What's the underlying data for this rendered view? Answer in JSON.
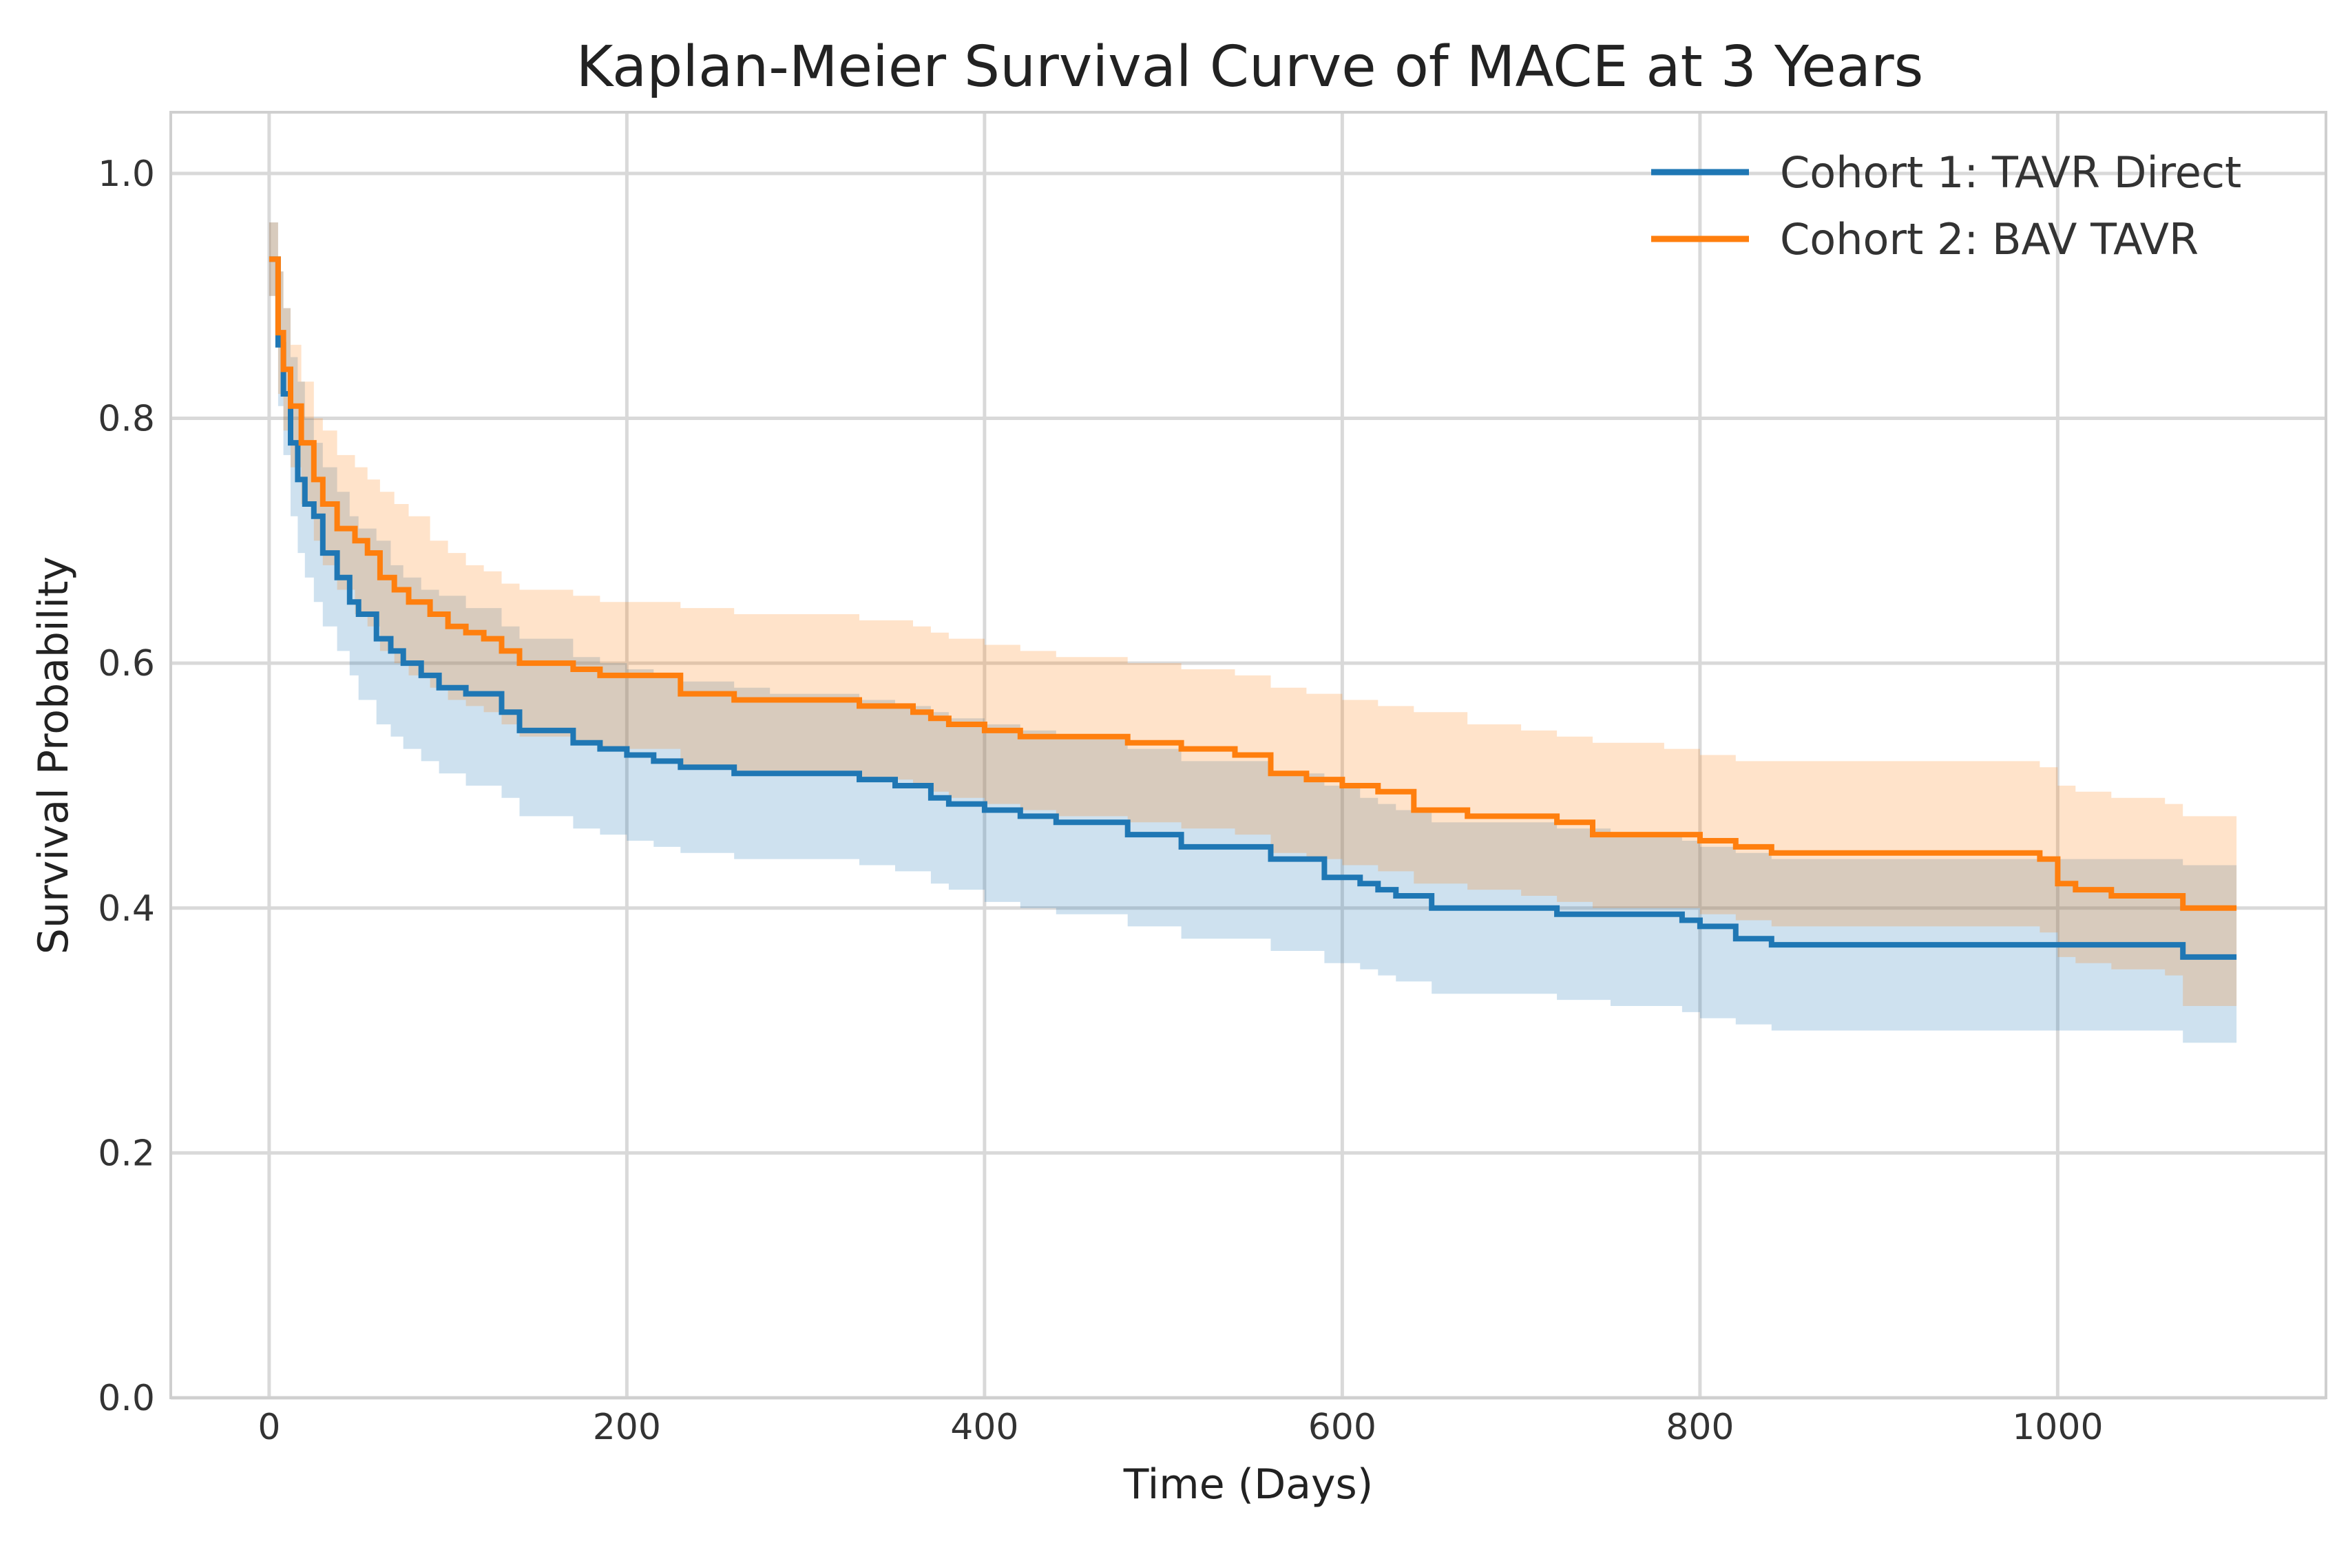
{
  "chart_data": {
    "type": "line",
    "title": "Kaplan-Meier Survival Curve of MACE at 3 Years",
    "xlabel": "Time (Days)",
    "ylabel": "Survival Probability",
    "xlim": [
      -55,
      1150
    ],
    "ylim": [
      0,
      1.05
    ],
    "xticks": [
      0,
      200,
      400,
      600,
      800,
      1000
    ],
    "xtick_labels": [
      "0",
      "200",
      "400",
      "600",
      "800",
      "1000"
    ],
    "yticks": [
      0.0,
      0.2,
      0.4,
      0.6,
      0.8,
      1.0
    ],
    "ytick_labels": [
      "0.0",
      "0.2",
      "0.4",
      "0.6",
      "0.8",
      "1.0"
    ],
    "grid": true,
    "legend_position": "top-right",
    "step": "post",
    "series": [
      {
        "name": "Cohort 1: TAVR Direct",
        "color": "#1f77b4",
        "x": [
          0,
          5,
          8,
          12,
          16,
          20,
          25,
          30,
          38,
          45,
          50,
          60,
          68,
          75,
          85,
          95,
          110,
          130,
          140,
          170,
          185,
          200,
          215,
          230,
          260,
          280,
          330,
          350,
          370,
          380,
          400,
          420,
          440,
          480,
          510,
          560,
          590,
          610,
          620,
          630,
          650,
          700,
          720,
          750,
          790,
          800,
          820,
          840,
          1000,
          1070,
          1100
        ],
        "values": [
          0.93,
          0.86,
          0.82,
          0.78,
          0.75,
          0.73,
          0.72,
          0.69,
          0.67,
          0.65,
          0.64,
          0.62,
          0.61,
          0.6,
          0.59,
          0.58,
          0.575,
          0.56,
          0.545,
          0.535,
          0.53,
          0.525,
          0.52,
          0.515,
          0.51,
          0.51,
          0.505,
          0.5,
          0.49,
          0.485,
          0.48,
          0.475,
          0.47,
          0.46,
          0.45,
          0.44,
          0.425,
          0.42,
          0.415,
          0.41,
          0.4,
          0.4,
          0.395,
          0.395,
          0.39,
          0.385,
          0.375,
          0.37,
          0.37,
          0.36,
          0.36
        ],
        "ci_upper": [
          0.96,
          0.92,
          0.89,
          0.85,
          0.83,
          0.8,
          0.78,
          0.76,
          0.74,
          0.72,
          0.71,
          0.7,
          0.68,
          0.67,
          0.66,
          0.655,
          0.645,
          0.63,
          0.62,
          0.605,
          0.6,
          0.595,
          0.59,
          0.585,
          0.58,
          0.575,
          0.57,
          0.565,
          0.56,
          0.555,
          0.55,
          0.545,
          0.54,
          0.53,
          0.52,
          0.51,
          0.5,
          0.49,
          0.485,
          0.48,
          0.47,
          0.47,
          0.465,
          0.46,
          0.455,
          0.45,
          0.445,
          0.44,
          0.44,
          0.435,
          0.435
        ],
        "ci_lower": [
          0.9,
          0.81,
          0.77,
          0.72,
          0.69,
          0.67,
          0.65,
          0.63,
          0.61,
          0.59,
          0.57,
          0.55,
          0.54,
          0.53,
          0.52,
          0.51,
          0.5,
          0.49,
          0.475,
          0.465,
          0.46,
          0.455,
          0.45,
          0.445,
          0.44,
          0.44,
          0.435,
          0.43,
          0.42,
          0.415,
          0.405,
          0.4,
          0.395,
          0.385,
          0.375,
          0.365,
          0.355,
          0.35,
          0.345,
          0.34,
          0.33,
          0.33,
          0.325,
          0.32,
          0.315,
          0.31,
          0.305,
          0.3,
          0.3,
          0.29,
          0.285
        ]
      },
      {
        "name": "Cohort 2: BAV TAVR",
        "color": "#ff7f0e",
        "x": [
          0,
          5,
          8,
          12,
          18,
          25,
          30,
          38,
          48,
          55,
          62,
          70,
          78,
          90,
          100,
          110,
          120,
          130,
          140,
          170,
          185,
          230,
          260,
          330,
          360,
          370,
          380,
          400,
          420,
          440,
          480,
          510,
          540,
          560,
          580,
          600,
          620,
          640,
          670,
          700,
          720,
          740,
          780,
          800,
          820,
          840,
          980,
          990,
          1000,
          1010,
          1030,
          1060,
          1070,
          1100
        ],
        "values": [
          0.93,
          0.87,
          0.84,
          0.81,
          0.78,
          0.75,
          0.73,
          0.71,
          0.7,
          0.69,
          0.67,
          0.66,
          0.65,
          0.64,
          0.63,
          0.625,
          0.62,
          0.61,
          0.6,
          0.595,
          0.59,
          0.575,
          0.57,
          0.565,
          0.56,
          0.555,
          0.55,
          0.545,
          0.54,
          0.54,
          0.535,
          0.53,
          0.525,
          0.51,
          0.505,
          0.5,
          0.495,
          0.48,
          0.475,
          0.475,
          0.47,
          0.46,
          0.46,
          0.455,
          0.45,
          0.445,
          0.445,
          0.44,
          0.42,
          0.415,
          0.41,
          0.41,
          0.4,
          0.4
        ],
        "ci_upper": [
          0.96,
          0.92,
          0.89,
          0.86,
          0.83,
          0.8,
          0.79,
          0.77,
          0.76,
          0.75,
          0.74,
          0.73,
          0.72,
          0.7,
          0.69,
          0.68,
          0.675,
          0.665,
          0.66,
          0.655,
          0.65,
          0.645,
          0.64,
          0.635,
          0.63,
          0.625,
          0.62,
          0.615,
          0.61,
          0.605,
          0.6,
          0.595,
          0.59,
          0.58,
          0.575,
          0.57,
          0.565,
          0.56,
          0.55,
          0.545,
          0.54,
          0.535,
          0.53,
          0.525,
          0.52,
          0.52,
          0.52,
          0.515,
          0.5,
          0.495,
          0.49,
          0.485,
          0.475,
          0.475
        ],
        "ci_lower": [
          0.9,
          0.82,
          0.79,
          0.76,
          0.73,
          0.7,
          0.68,
          0.66,
          0.64,
          0.63,
          0.61,
          0.6,
          0.59,
          0.58,
          0.57,
          0.565,
          0.56,
          0.55,
          0.54,
          0.535,
          0.53,
          0.515,
          0.51,
          0.505,
          0.5,
          0.495,
          0.49,
          0.485,
          0.48,
          0.475,
          0.47,
          0.465,
          0.46,
          0.445,
          0.44,
          0.435,
          0.43,
          0.42,
          0.415,
          0.41,
          0.405,
          0.4,
          0.4,
          0.395,
          0.39,
          0.385,
          0.385,
          0.38,
          0.36,
          0.355,
          0.35,
          0.345,
          0.32,
          0.32
        ]
      }
    ]
  }
}
